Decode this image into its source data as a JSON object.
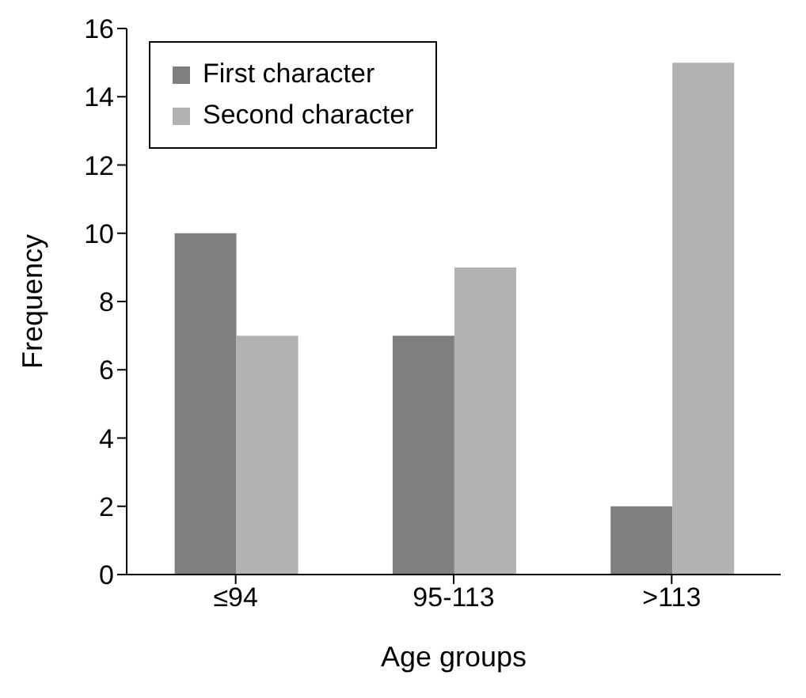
{
  "chart_data": {
    "type": "bar",
    "xlabel": "Age groups",
    "ylabel": "Frequency",
    "categories": [
      "≤94",
      "95-113",
      ">113"
    ],
    "series": [
      {
        "name": "First character",
        "color": "#7f7f7f",
        "values": [
          10,
          7,
          2
        ]
      },
      {
        "name": "Second character",
        "color": "#b2b2b2",
        "values": [
          7,
          9,
          15
        ]
      }
    ],
    "ylim": [
      0,
      16
    ],
    "yticks": [
      0,
      2,
      4,
      6,
      8,
      10,
      12,
      14,
      16
    ],
    "grid": false,
    "legend": "top left"
  }
}
